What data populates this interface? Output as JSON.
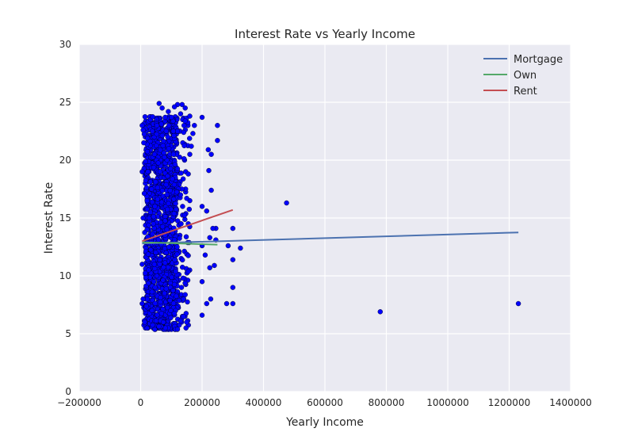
{
  "chart_data": {
    "type": "scatter",
    "title": "Interest Rate vs Yearly Income",
    "xlabel": "Yearly Income",
    "ylabel": "Interest Rate",
    "xlim": [
      -200000,
      1400000
    ],
    "ylim": [
      0,
      30
    ],
    "xticks": [
      "−200000",
      "0",
      "200000",
      "400000",
      "600000",
      "800000",
      "1000000",
      "1200000",
      "1400000"
    ],
    "yticks": [
      "0",
      "5",
      "10",
      "15",
      "20",
      "25",
      "30"
    ],
    "grid": true,
    "legend_position": "top-right",
    "scatter": {
      "color": "#0000ff",
      "points": [
        [
          475000,
          16.3
        ],
        [
          780000,
          6.9
        ],
        [
          1230000,
          7.6
        ],
        [
          300000,
          14.1
        ],
        [
          300000,
          11.4
        ],
        [
          300000,
          9.0
        ],
        [
          300000,
          7.6
        ],
        [
          325000,
          12.4
        ],
        [
          285000,
          12.6
        ],
        [
          280000,
          7.6
        ],
        [
          250000,
          23.0
        ],
        [
          250000,
          21.7
        ],
        [
          245000,
          14.1
        ],
        [
          245000,
          13.1
        ],
        [
          240000,
          10.9
        ],
        [
          235000,
          14.1
        ],
        [
          230000,
          20.5
        ],
        [
          230000,
          17.4
        ],
        [
          228000,
          8.0
        ],
        [
          225000,
          13.3
        ],
        [
          225000,
          10.7
        ],
        [
          222000,
          19.1
        ],
        [
          220000,
          20.9
        ],
        [
          215000,
          15.6
        ],
        [
          215000,
          7.6
        ],
        [
          210000,
          11.8
        ],
        [
          200000,
          23.7
        ],
        [
          200000,
          16.0
        ],
        [
          200000,
          12.6
        ],
        [
          200000,
          9.5
        ],
        [
          200000,
          6.6
        ],
        [
          175000,
          23.0
        ],
        [
          170000,
          22.3
        ],
        [
          165000,
          21.2
        ],
        [
          160000,
          23.8
        ],
        [
          160000,
          20.5
        ],
        [
          155000,
          18.8
        ],
        [
          155000,
          14.5
        ],
        [
          150000,
          16.7
        ],
        [
          150000,
          6.0
        ],
        [
          145000,
          24.5
        ],
        [
          140000,
          22.4
        ],
        [
          138000,
          9.8
        ],
        [
          135000,
          24.8
        ],
        [
          130000,
          24.0
        ],
        [
          130000,
          6.1
        ],
        [
          120000,
          24.8
        ],
        [
          120000,
          5.4
        ],
        [
          110000,
          24.6
        ],
        [
          100000,
          23.7
        ],
        [
          90000,
          24.2
        ],
        [
          80000,
          23.7
        ],
        [
          70000,
          24.5
        ],
        [
          60000,
          24.9
        ],
        [
          5000,
          23.0
        ],
        [
          8000,
          22.6
        ],
        [
          10000,
          21.5
        ],
        [
          5000,
          19.0
        ],
        [
          8000,
          15.0
        ],
        [
          5000,
          11.0
        ],
        [
          8000,
          8.0
        ],
        [
          5000,
          7.6
        ]
      ],
      "cluster": {
        "x_range": [
          10000,
          160000
        ],
        "y_range": [
          5.4,
          23.8
        ],
        "dense_x_range": [
          15000,
          120000
        ]
      }
    },
    "series": [
      {
        "name": "Mortgage",
        "color": "#4c72b0",
        "x": [
          5000,
          1230000
        ],
        "y": [
          12.8,
          13.75
        ]
      },
      {
        "name": "Own",
        "color": "#55a868",
        "x": [
          5000,
          250000
        ],
        "y": [
          12.9,
          12.7
        ]
      },
      {
        "name": "Rent",
        "color": "#c44e52",
        "x": [
          5000,
          300000
        ],
        "y": [
          13.0,
          15.7
        ]
      }
    ]
  }
}
